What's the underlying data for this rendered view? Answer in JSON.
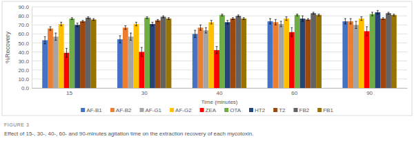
{
  "chart_data": {
    "type": "bar",
    "title": "FIGURE 3",
    "subtitle": "Effect of 15-, 30-, 40-, 60- and 90-minutes agitation time on the extraction recovery of each mycotoxin.",
    "x_label": "Time (minutes)",
    "y_label": "%Recovery",
    "categories": [
      "15",
      "30",
      "40",
      "60",
      "90"
    ],
    "series": [
      {
        "name": "AF-B1",
        "color": "#4472c4",
        "values": [
          53,
          54,
          60,
          74,
          74
        ],
        "errors": [
          4,
          4,
          4,
          3,
          3
        ]
      },
      {
        "name": "AF-B2",
        "color": "#ed7d31",
        "values": [
          66,
          67,
          67,
          73,
          74
        ],
        "errors": [
          2,
          2,
          3,
          3,
          3
        ]
      },
      {
        "name": "AF-G1",
        "color": "#a5a5a5",
        "values": [
          57,
          57,
          64,
          71,
          70
        ],
        "errors": [
          4,
          4,
          3,
          3,
          4
        ]
      },
      {
        "name": "AF-G2",
        "color": "#ffc000",
        "values": [
          71,
          71,
          73,
          77,
          77
        ],
        "errors": [
          2,
          2,
          2,
          2,
          2
        ]
      },
      {
        "name": "ZEA",
        "color": "#ff0000",
        "values": [
          39,
          40,
          42,
          62,
          63
        ],
        "errors": [
          5,
          5,
          4,
          5,
          5
        ]
      },
      {
        "name": "OTA",
        "color": "#70ad47",
        "values": [
          77,
          78,
          81,
          81,
          82
        ],
        "errors": [
          1,
          1,
          1,
          1,
          2
        ]
      },
      {
        "name": "HT2",
        "color": "#264478",
        "values": [
          70,
          71,
          73,
          77,
          84
        ],
        "errors": [
          2,
          2,
          2,
          3,
          2
        ]
      },
      {
        "name": "T2",
        "color": "#9e480e",
        "values": [
          74,
          75,
          77,
          76,
          77
        ],
        "errors": [
          1,
          1,
          1,
          1,
          1
        ]
      },
      {
        "name": "FB2",
        "color": "#636363",
        "values": [
          78,
          79,
          80,
          83,
          83
        ],
        "errors": [
          1,
          1,
          1,
          1,
          1
        ]
      },
      {
        "name": "FB1",
        "color": "#997300",
        "values": [
          76,
          77,
          77,
          81,
          81
        ],
        "errors": [
          1,
          1,
          1,
          1,
          1
        ]
      }
    ],
    "ylim": [
      0,
      90
    ],
    "yticks": [
      {
        "value": 0,
        "label": "0.0"
      },
      {
        "value": 10,
        "label": "10.0"
      },
      {
        "value": 20,
        "label": "20.0"
      },
      {
        "value": 30,
        "label": "30.0"
      },
      {
        "value": 40,
        "label": "40.0"
      },
      {
        "value": 50,
        "label": "50.0"
      },
      {
        "value": 60,
        "label": "60.0"
      },
      {
        "value": 70,
        "label": "70.0"
      },
      {
        "value": 80,
        "label": "80.0"
      },
      {
        "value": 90,
        "label": "90.0"
      }
    ],
    "grid": true,
    "legend": "bottom"
  }
}
